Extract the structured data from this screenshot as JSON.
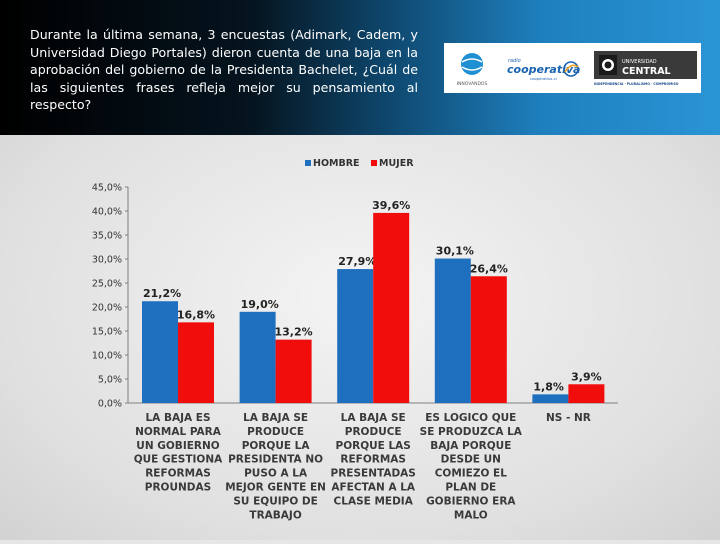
{
  "question": "Durante la última semana, 3 encuestas (Adimark, Cadem, y Universidad Diego Portales) dieron cuenta de una baja en la aprobación del gobierno de la Presidenta Bachelet, ¿Cuál de las siguientes frases refleja mejor su pensamiento al respecto?",
  "logos": {
    "cooperativa_name": "cooperativa",
    "cooperativa_prefix": "radio",
    "cooperativa_tagline": "cooperativa.cl",
    "uc_line1": "UNIVERSIDAD",
    "uc_line2": "CENTRAL",
    "uc_motto": "INDEPENDENCIA · PLURALISMO · COMPROMISO",
    "left_logo_text": "INNOVANDOS"
  },
  "colors": {
    "hombre": "#1f6fbf",
    "mujer": "#f20d0d"
  },
  "chart_data": {
    "type": "bar",
    "title": "",
    "xlabel": "",
    "ylabel": "",
    "ylim": [
      0,
      45
    ],
    "yticks": [
      "0,0%",
      "5,0%",
      "10,0%",
      "15,0%",
      "20,0%",
      "25,0%",
      "30,0%",
      "35,0%",
      "40,0%",
      "45,0%"
    ],
    "grid": false,
    "legend_position": "top-center",
    "categories": [
      [
        "LA BAJA ES",
        "NORMAL PARA",
        "UN GOBIERNO",
        "QUE GESTIONA",
        "REFORMAS",
        "PROUNDAS"
      ],
      [
        "LA BAJA SE",
        "PRODUCE",
        "PORQUE LA",
        "PRESIDENTA NO",
        "PUSO A LA",
        "MEJOR GENTE EN",
        "SU EQUIPO DE",
        "TRABAJO"
      ],
      [
        "LA BAJA SE",
        "PRODUCE",
        "PORQUE LAS",
        "REFORMAS",
        "PRESENTADAS",
        "AFECTAN A LA",
        "CLASE MEDIA"
      ],
      [
        "ES LOGICO QUE",
        "SE PRODUZCA LA",
        "BAJA PORQUE",
        "DESDE UN",
        "COMIEZO EL",
        "PLAN DE",
        "GOBIERNO ERA",
        "MALO"
      ],
      [
        "NS - NR"
      ]
    ],
    "series": [
      {
        "name": "HOMBRE",
        "values": [
          21.2,
          19.0,
          27.9,
          30.1,
          1.8
        ],
        "labels": [
          "21,2%",
          "19,0%",
          "27,9%",
          "30,1%",
          "1,8%"
        ]
      },
      {
        "name": "MUJER",
        "values": [
          16.8,
          13.2,
          39.6,
          26.4,
          3.9
        ],
        "labels": [
          "16,8%",
          "13,2%",
          "39,6%",
          "26,4%",
          "3,9%"
        ]
      }
    ]
  }
}
